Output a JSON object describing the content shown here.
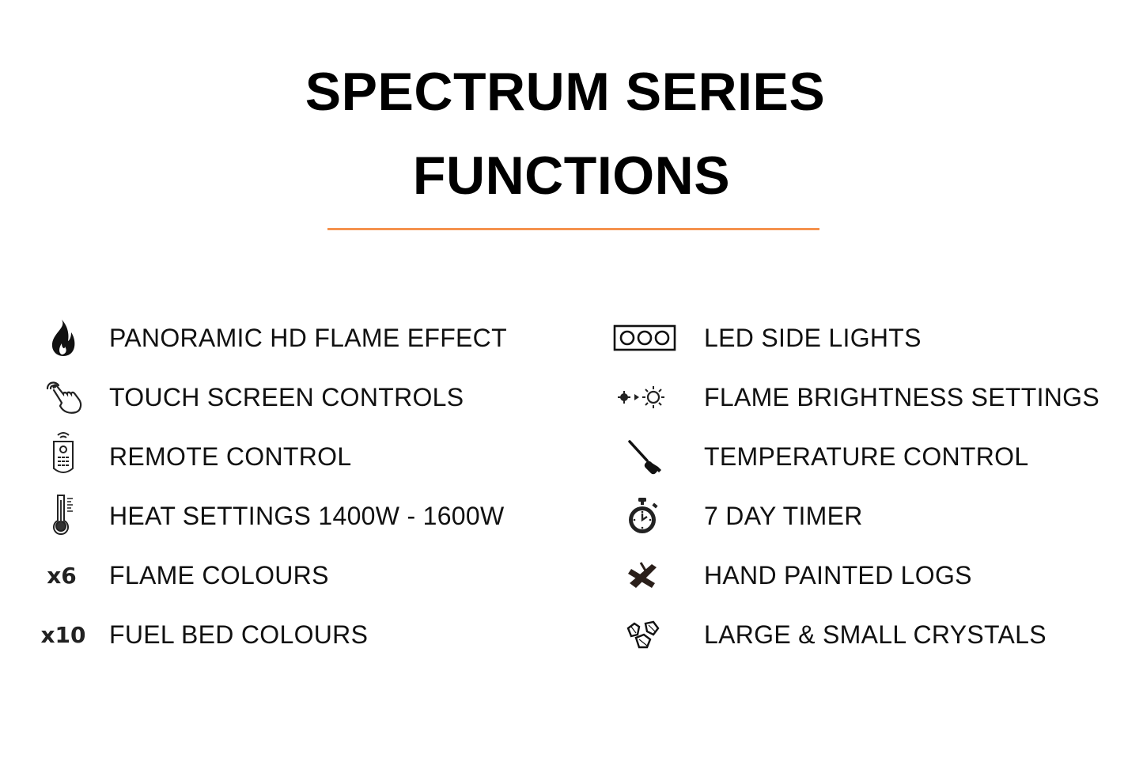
{
  "title_line1": "SPECTRUM SERIES",
  "title_line2": "FUNCTIONS",
  "colors": {
    "accent_rule": "#f5924e",
    "text": "#111111"
  },
  "left_features": [
    {
      "icon": "flame-icon",
      "label": "PANORAMIC HD FLAME EFFECT"
    },
    {
      "icon": "touch-hand-icon",
      "label": "TOUCH SCREEN CONTROLS"
    },
    {
      "icon": "remote-control-icon",
      "label": "REMOTE CONTROL"
    },
    {
      "icon": "thermometer-icon",
      "label": "HEAT SETTINGS 1400W  - 1600W"
    },
    {
      "icon": "x6-icon",
      "icon_text": "x6",
      "label": "FLAME COLOURS"
    },
    {
      "icon": "x10-icon",
      "icon_text": "x10",
      "label": "FUEL BED COLOURS"
    }
  ],
  "right_features": [
    {
      "icon": "led-lights-icon",
      "label": "LED SIDE LIGHTS"
    },
    {
      "icon": "brightness-icon",
      "label": "FLAME BRIGHTNESS SETTINGS"
    },
    {
      "icon": "screwdriver-icon",
      "label": "TEMPERATURE CONTROL"
    },
    {
      "icon": "stopwatch-icon",
      "label": "7 DAY TIMER"
    },
    {
      "icon": "logs-icon",
      "label": "HAND PAINTED LOGS"
    },
    {
      "icon": "crystals-icon",
      "label": "LARGE & SMALL CRYSTALS"
    }
  ]
}
